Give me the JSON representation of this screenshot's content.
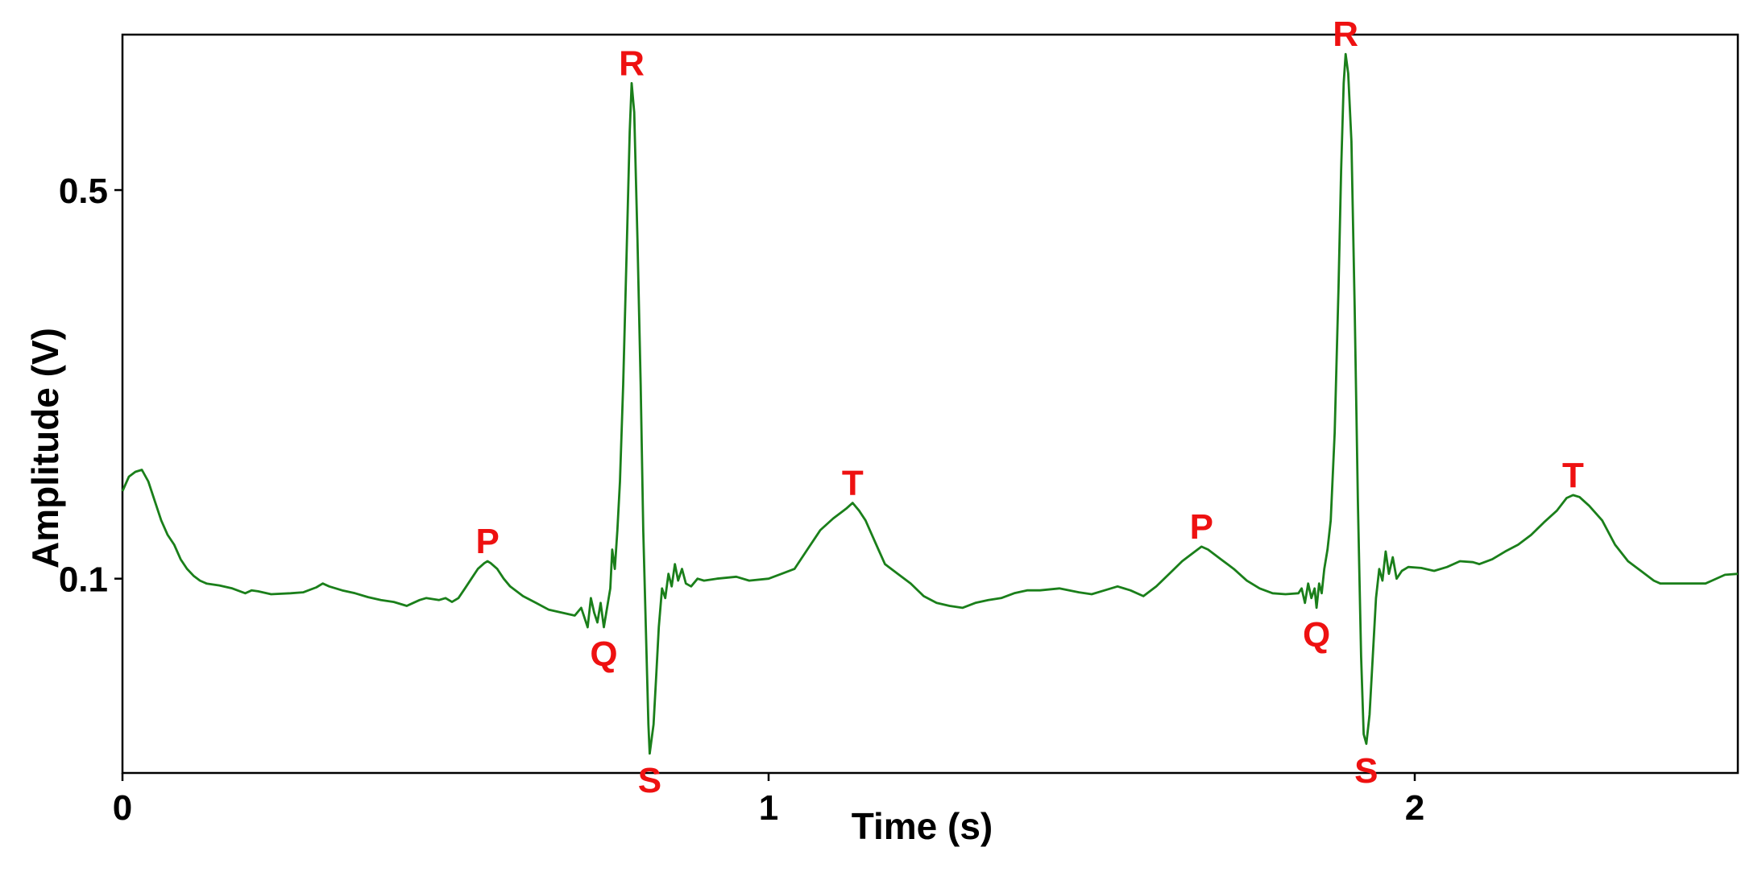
{
  "chart_data": {
    "type": "line",
    "title": "",
    "xlabel": "Time (s)",
    "ylabel": "Amplitude (V)",
    "xlim": [
      0,
      2.5
    ],
    "ylim": [
      -0.1,
      0.66
    ],
    "x_ticks": [
      {
        "value": 0,
        "label": "0"
      },
      {
        "value": 1,
        "label": "1"
      },
      {
        "value": 2,
        "label": "2"
      }
    ],
    "y_ticks": [
      {
        "value": 0.1,
        "label": "0.1"
      },
      {
        "value": 0.5,
        "label": "0.5"
      }
    ],
    "grid": false,
    "legend": "none",
    "line_color": "#1a7f1a",
    "label_color": "#ee1111",
    "series": [
      {
        "values": [
          [
            0.0,
            0.19
          ],
          [
            0.01,
            0.205
          ],
          [
            0.02,
            0.21
          ],
          [
            0.03,
            0.212
          ],
          [
            0.04,
            0.2
          ],
          [
            0.05,
            0.18
          ],
          [
            0.06,
            0.16
          ],
          [
            0.07,
            0.145
          ],
          [
            0.08,
            0.135
          ],
          [
            0.09,
            0.12
          ],
          [
            0.1,
            0.11
          ],
          [
            0.11,
            0.103
          ],
          [
            0.12,
            0.098
          ],
          [
            0.13,
            0.095
          ],
          [
            0.15,
            0.093
          ],
          [
            0.17,
            0.09
          ],
          [
            0.19,
            0.085
          ],
          [
            0.2,
            0.088
          ],
          [
            0.21,
            0.087
          ],
          [
            0.23,
            0.084
          ],
          [
            0.26,
            0.085
          ],
          [
            0.28,
            0.086
          ],
          [
            0.3,
            0.091
          ],
          [
            0.31,
            0.095
          ],
          [
            0.32,
            0.092
          ],
          [
            0.34,
            0.088
          ],
          [
            0.36,
            0.085
          ],
          [
            0.38,
            0.081
          ],
          [
            0.4,
            0.078
          ],
          [
            0.42,
            0.076
          ],
          [
            0.44,
            0.072
          ],
          [
            0.45,
            0.075
          ],
          [
            0.46,
            0.078
          ],
          [
            0.47,
            0.08
          ],
          [
            0.49,
            0.078
          ],
          [
            0.5,
            0.08
          ],
          [
            0.51,
            0.076
          ],
          [
            0.52,
            0.08
          ],
          [
            0.53,
            0.09
          ],
          [
            0.54,
            0.1
          ],
          [
            0.55,
            0.11
          ],
          [
            0.56,
            0.116
          ],
          [
            0.565,
            0.118
          ],
          [
            0.57,
            0.116
          ],
          [
            0.58,
            0.11
          ],
          [
            0.59,
            0.1
          ],
          [
            0.6,
            0.092
          ],
          [
            0.62,
            0.082
          ],
          [
            0.64,
            0.075
          ],
          [
            0.66,
            0.068
          ],
          [
            0.68,
            0.065
          ],
          [
            0.7,
            0.062
          ],
          [
            0.71,
            0.07
          ],
          [
            0.715,
            0.06
          ],
          [
            0.72,
            0.05
          ],
          [
            0.725,
            0.08
          ],
          [
            0.73,
            0.065
          ],
          [
            0.735,
            0.055
          ],
          [
            0.74,
            0.075
          ],
          [
            0.745,
            0.05
          ],
          [
            0.75,
            0.07
          ],
          [
            0.755,
            0.09
          ],
          [
            0.758,
            0.13
          ],
          [
            0.762,
            0.11
          ],
          [
            0.766,
            0.15
          ],
          [
            0.77,
            0.2
          ],
          [
            0.775,
            0.3
          ],
          [
            0.78,
            0.43
          ],
          [
            0.785,
            0.56
          ],
          [
            0.788,
            0.61
          ],
          [
            0.792,
            0.58
          ],
          [
            0.797,
            0.45
          ],
          [
            0.802,
            0.3
          ],
          [
            0.806,
            0.15
          ],
          [
            0.81,
            0.05
          ],
          [
            0.812,
            0.0
          ],
          [
            0.814,
            -0.05
          ],
          [
            0.816,
            -0.08
          ],
          [
            0.818,
            -0.07
          ],
          [
            0.822,
            -0.05
          ],
          [
            0.826,
            0.0
          ],
          [
            0.83,
            0.05
          ],
          [
            0.835,
            0.09
          ],
          [
            0.84,
            0.08
          ],
          [
            0.845,
            0.105
          ],
          [
            0.85,
            0.092
          ],
          [
            0.855,
            0.115
          ],
          [
            0.86,
            0.098
          ],
          [
            0.866,
            0.11
          ],
          [
            0.872,
            0.095
          ],
          [
            0.88,
            0.092
          ],
          [
            0.89,
            0.1
          ],
          [
            0.9,
            0.098
          ],
          [
            0.92,
            0.1
          ],
          [
            0.95,
            0.102
          ],
          [
            0.97,
            0.098
          ],
          [
            1.0,
            0.1
          ],
          [
            1.02,
            0.105
          ],
          [
            1.04,
            0.11
          ],
          [
            1.06,
            0.13
          ],
          [
            1.08,
            0.15
          ],
          [
            1.1,
            0.162
          ],
          [
            1.12,
            0.172
          ],
          [
            1.13,
            0.178
          ],
          [
            1.14,
            0.17
          ],
          [
            1.15,
            0.16
          ],
          [
            1.16,
            0.145
          ],
          [
            1.17,
            0.13
          ],
          [
            1.18,
            0.115
          ],
          [
            1.2,
            0.105
          ],
          [
            1.22,
            0.095
          ],
          [
            1.24,
            0.082
          ],
          [
            1.26,
            0.075
          ],
          [
            1.28,
            0.072
          ],
          [
            1.3,
            0.07
          ],
          [
            1.32,
            0.075
          ],
          [
            1.34,
            0.078
          ],
          [
            1.36,
            0.08
          ],
          [
            1.38,
            0.085
          ],
          [
            1.4,
            0.088
          ],
          [
            1.42,
            0.088
          ],
          [
            1.45,
            0.09
          ],
          [
            1.48,
            0.086
          ],
          [
            1.5,
            0.084
          ],
          [
            1.52,
            0.088
          ],
          [
            1.54,
            0.092
          ],
          [
            1.56,
            0.088
          ],
          [
            1.58,
            0.082
          ],
          [
            1.6,
            0.092
          ],
          [
            1.62,
            0.105
          ],
          [
            1.64,
            0.118
          ],
          [
            1.66,
            0.128
          ],
          [
            1.67,
            0.133
          ],
          [
            1.68,
            0.13
          ],
          [
            1.7,
            0.12
          ],
          [
            1.72,
            0.11
          ],
          [
            1.74,
            0.098
          ],
          [
            1.76,
            0.09
          ],
          [
            1.78,
            0.085
          ],
          [
            1.8,
            0.084
          ],
          [
            1.82,
            0.085
          ],
          [
            1.825,
            0.09
          ],
          [
            1.83,
            0.075
          ],
          [
            1.835,
            0.095
          ],
          [
            1.84,
            0.08
          ],
          [
            1.845,
            0.09
          ],
          [
            1.848,
            0.07
          ],
          [
            1.852,
            0.095
          ],
          [
            1.856,
            0.085
          ],
          [
            1.86,
            0.11
          ],
          [
            1.865,
            0.13
          ],
          [
            1.87,
            0.16
          ],
          [
            1.876,
            0.25
          ],
          [
            1.882,
            0.4
          ],
          [
            1.886,
            0.52
          ],
          [
            1.89,
            0.61
          ],
          [
            1.893,
            0.64
          ],
          [
            1.897,
            0.62
          ],
          [
            1.902,
            0.55
          ],
          [
            1.907,
            0.38
          ],
          [
            1.912,
            0.18
          ],
          [
            1.917,
            0.02
          ],
          [
            1.921,
            -0.06
          ],
          [
            1.925,
            -0.07
          ],
          [
            1.93,
            -0.04
          ],
          [
            1.935,
            0.02
          ],
          [
            1.94,
            0.08
          ],
          [
            1.945,
            0.11
          ],
          [
            1.95,
            0.098
          ],
          [
            1.955,
            0.128
          ],
          [
            1.96,
            0.105
          ],
          [
            1.966,
            0.122
          ],
          [
            1.972,
            0.1
          ],
          [
            1.98,
            0.108
          ],
          [
            1.99,
            0.112
          ],
          [
            2.01,
            0.111
          ],
          [
            2.03,
            0.108
          ],
          [
            2.05,
            0.112
          ],
          [
            2.07,
            0.118
          ],
          [
            2.09,
            0.117
          ],
          [
            2.1,
            0.115
          ],
          [
            2.12,
            0.12
          ],
          [
            2.14,
            0.128
          ],
          [
            2.16,
            0.135
          ],
          [
            2.18,
            0.145
          ],
          [
            2.2,
            0.158
          ],
          [
            2.22,
            0.17
          ],
          [
            2.235,
            0.183
          ],
          [
            2.245,
            0.186
          ],
          [
            2.255,
            0.184
          ],
          [
            2.27,
            0.175
          ],
          [
            2.29,
            0.16
          ],
          [
            2.31,
            0.135
          ],
          [
            2.33,
            0.118
          ],
          [
            2.35,
            0.108
          ],
          [
            2.37,
            0.098
          ],
          [
            2.38,
            0.095
          ],
          [
            2.4,
            0.095
          ],
          [
            2.43,
            0.095
          ],
          [
            2.45,
            0.095
          ],
          [
            2.46,
            0.098
          ],
          [
            2.48,
            0.104
          ],
          [
            2.5,
            0.105
          ]
        ]
      }
    ],
    "annotations": [
      {
        "label": "P",
        "x": 0.565,
        "y": 0.118
      },
      {
        "label": "Q",
        "x": 0.745,
        "y": 0.05
      },
      {
        "label": "R",
        "x": 0.788,
        "y": 0.61
      },
      {
        "label": "S",
        "x": 0.816,
        "y": -0.08
      },
      {
        "label": "T",
        "x": 1.13,
        "y": 0.178
      },
      {
        "label": "P",
        "x": 1.67,
        "y": 0.133
      },
      {
        "label": "Q",
        "x": 1.848,
        "y": 0.07
      },
      {
        "label": "R",
        "x": 1.893,
        "y": 0.64
      },
      {
        "label": "S",
        "x": 1.925,
        "y": -0.07
      },
      {
        "label": "T",
        "x": 2.245,
        "y": 0.186
      }
    ]
  }
}
